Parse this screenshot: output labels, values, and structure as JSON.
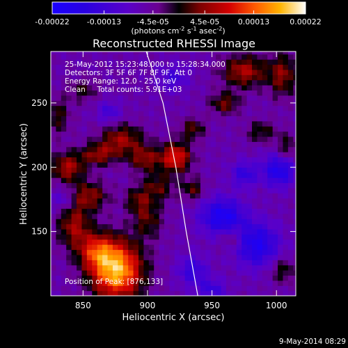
{
  "chart_data": {
    "type": "heatmap",
    "title": "Reconstructed RHESSI Image",
    "xlabel": "Heliocentric X (arcsec)",
    "ylabel": "Heliocentric Y (arcsec)",
    "xlim": [
      825,
      1015
    ],
    "ylim": [
      100,
      290
    ],
    "x_ticks": [
      850,
      900,
      950,
      1000
    ],
    "y_ticks": [
      150,
      200,
      250
    ],
    "colorbar": {
      "range": [
        -0.00022,
        0.00022
      ],
      "tick_labels": [
        "-0.00022",
        "-0.00013",
        "-4.5e-05",
        "4.5e-05",
        "0.00013",
        "0.00022"
      ],
      "tick_values": [
        -0.00022,
        -0.00013,
        -4.5e-05,
        4.5e-05,
        0.00013,
        0.00022
      ],
      "units_label": "(photons cm",
      "units_exp1": "-2",
      "units_mid": " s",
      "units_exp2": "-1",
      "units_mid2": " asec",
      "units_exp3": "-2",
      "units_end": ")"
    },
    "info_lines": [
      "25-May-2012 15:23:48.000 to 15:28:34.000",
      "Detectors: 3F 5F 6F 7F 8F 9F, Att 0",
      "Energy Range: 12.0 - 25.0 keV",
      "Clean     Total counts: 5.91E+03"
    ],
    "peak_label": "Position of Peak: [876,133]",
    "limb_curve": [
      [
        899,
        290
      ],
      [
        912,
        250
      ],
      [
        922,
        200
      ],
      [
        930,
        150
      ],
      [
        939,
        100
      ]
    ],
    "hot_blobs": [
      {
        "x": 876,
        "y": 120,
        "sx": 14,
        "sy": 16,
        "a": 0.00024
      },
      {
        "x": 860,
        "y": 135,
        "sx": 10,
        "sy": 10,
        "a": 0.00012
      },
      {
        "x": 843,
        "y": 155,
        "sx": 9,
        "sy": 12,
        "a": 0.00011
      },
      {
        "x": 855,
        "y": 178,
        "sx": 10,
        "sy": 8,
        "a": 0.0001
      },
      {
        "x": 838,
        "y": 200,
        "sx": 9,
        "sy": 8,
        "a": 0.00012
      },
      {
        "x": 862,
        "y": 210,
        "sx": 10,
        "sy": 6,
        "a": 0.0001
      },
      {
        "x": 880,
        "y": 222,
        "sx": 12,
        "sy": 8,
        "a": 0.00011
      },
      {
        "x": 898,
        "y": 207,
        "sx": 9,
        "sy": 7,
        "a": 0.0001
      },
      {
        "x": 922,
        "y": 208,
        "sx": 8,
        "sy": 8,
        "a": 0.00016
      },
      {
        "x": 908,
        "y": 185,
        "sx": 9,
        "sy": 8,
        "a": 8e-05
      },
      {
        "x": 900,
        "y": 160,
        "sx": 8,
        "sy": 10,
        "a": 8e-05
      },
      {
        "x": 892,
        "y": 175,
        "sx": 7,
        "sy": 7,
        "a": 7e-05
      },
      {
        "x": 935,
        "y": 183,
        "sx": 6,
        "sy": 6,
        "a": 8e-05
      },
      {
        "x": 935,
        "y": 230,
        "sx": 7,
        "sy": 6,
        "a": 8e-05
      },
      {
        "x": 960,
        "y": 250,
        "sx": 8,
        "sy": 6,
        "a": 9e-05
      },
      {
        "x": 975,
        "y": 275,
        "sx": 12,
        "sy": 9,
        "a": 0.00012
      },
      {
        "x": 1005,
        "y": 272,
        "sx": 8,
        "sy": 12,
        "a": 0.0001
      },
      {
        "x": 830,
        "y": 240,
        "sx": 7,
        "sy": 10,
        "a": 7e-05
      },
      {
        "x": 850,
        "y": 260,
        "sx": 8,
        "sy": 6,
        "a": 6e-05
      },
      {
        "x": 988,
        "y": 228,
        "sx": 8,
        "sy": 6,
        "a": 7e-05
      },
      {
        "x": 1008,
        "y": 215,
        "sx": 6,
        "sy": 8,
        "a": 7e-05
      },
      {
        "x": 965,
        "y": 145,
        "sx": 6,
        "sy": 6,
        "a": 6e-05
      },
      {
        "x": 1005,
        "y": 120,
        "sx": 7,
        "sy": 7,
        "a": 7e-05
      }
    ],
    "cold_blobs": [
      {
        "x": 958,
        "y": 162,
        "sx": 12,
        "sy": 10,
        "a": -0.00014
      },
      {
        "x": 985,
        "y": 140,
        "sx": 12,
        "sy": 12,
        "a": -0.00013
      },
      {
        "x": 1002,
        "y": 198,
        "sx": 9,
        "sy": 9,
        "a": -0.00013
      },
      {
        "x": 935,
        "y": 120,
        "sx": 8,
        "sy": 8,
        "a": -9e-05
      },
      {
        "x": 975,
        "y": 195,
        "sx": 7,
        "sy": 7,
        "a": -9e-05
      },
      {
        "x": 870,
        "y": 243,
        "sx": 6,
        "sy": 6,
        "a": -7e-05
      },
      {
        "x": 920,
        "y": 270,
        "sx": 8,
        "sy": 7,
        "a": -7e-05
      },
      {
        "x": 835,
        "y": 175,
        "sx": 6,
        "sy": 6,
        "a": -6e-05
      },
      {
        "x": 950,
        "y": 105,
        "sx": 8,
        "sy": 6,
        "a": -8e-05
      }
    ]
  },
  "footer": {
    "timestamp": "9-May-2014 08:29"
  }
}
